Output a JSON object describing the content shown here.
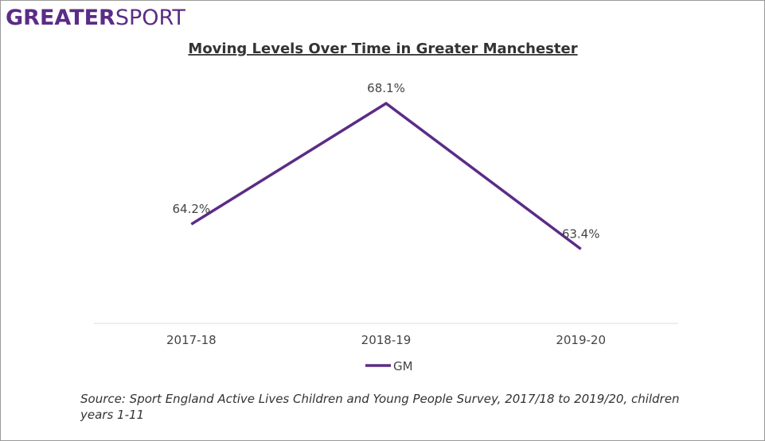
{
  "brand": {
    "bold": "GREATER",
    "light": "SPORT"
  },
  "chart_data": {
    "type": "line",
    "title": "Moving Levels Over Time in Greater Manchester",
    "categories": [
      "2017-18",
      "2018-19",
      "2019-20"
    ],
    "series": [
      {
        "name": "GM",
        "color": "#5b2c86",
        "values": [
          64.2,
          68.1,
          63.4
        ],
        "value_labels": [
          "64.2%",
          "68.1%",
          "63.4%"
        ]
      }
    ],
    "ylim": [
      61,
      69
    ],
    "legend": "bottom"
  },
  "source": "Source: Sport England Active Lives Children and Young People Survey, 2017/18 to 2019/20, children years 1-11"
}
